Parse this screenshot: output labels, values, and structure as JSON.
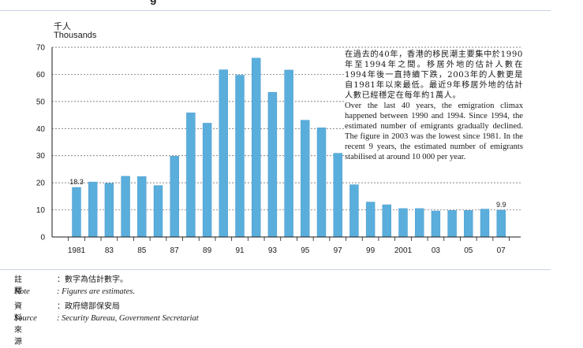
{
  "page": {
    "title_fragment": "g",
    "unit_zh": "千人",
    "unit_en": "Thousands"
  },
  "annotation": {
    "zh": "在過去的40年，香港的移民潮主要集中於1990年至1994年之間。移居外地的估計人數在1994年後一直持續下跌，2003年的人數更是自1981年以來最低。最近9年移居外地的估計人數已經穩定在每年約1萬人。",
    "en": "Over the last 40 years, the emigration climax happened between 1990 and 1994. Since 1994, the estimated number of emigrants gradually declined. The figure in 2003 was the lowest since 1981. In the recent 9 years, the estimated number of emigrants stabilised at around 10 000 per year."
  },
  "notes": {
    "note_label_zh": "註釋",
    "note_text_zh": "：數字為估計數字。",
    "note_label_en": "Note",
    "note_text_en": ": Figures are estimates.",
    "source_label_zh": "資料來源",
    "source_text_zh": "：政府總部保安局",
    "source_label_en": "Source",
    "source_text_en": ": Security Bureau, Government Secretariat"
  },
  "colors": {
    "bar": "#5aaedc",
    "bar_edge": "#3f93c6",
    "grid": "#5b5b5b",
    "axis": "#1a1a1a"
  },
  "chart_data": {
    "type": "bar",
    "title": "",
    "xlabel": "",
    "ylabel": "Thousands",
    "ylim": [
      0,
      70
    ],
    "yticks": [
      "0",
      "10",
      "20",
      "30",
      "40",
      "50",
      "60",
      "70"
    ],
    "categories": [
      "1981",
      "1982",
      "1983",
      "1984",
      "1985",
      "1986",
      "1987",
      "1988",
      "1989",
      "1990",
      "1991",
      "1992",
      "1993",
      "1994",
      "1995",
      "1996",
      "1997",
      "1998",
      "1999",
      "2000",
      "2001",
      "2002",
      "2003",
      "2004",
      "2005",
      "2006",
      "2007"
    ],
    "xtick_labels": [
      "1981",
      "",
      "83",
      "",
      "85",
      "",
      "87",
      "",
      "89",
      "",
      "91",
      "",
      "93",
      "",
      "95",
      "",
      "97",
      "",
      "99",
      "",
      "2001",
      "",
      "03",
      "",
      "05",
      "",
      "07"
    ],
    "values": [
      18.3,
      20.3,
      19.8,
      22.4,
      22.3,
      19.0,
      29.8,
      45.8,
      42.0,
      61.7,
      59.7,
      66.0,
      53.4,
      61.6,
      43.1,
      40.3,
      30.9,
      19.3,
      12.9,
      11.9,
      10.5,
      10.5,
      9.6,
      9.8,
      9.8,
      10.3,
      9.9
    ],
    "data_labels": [
      {
        "index": 0,
        "text": "18.3"
      },
      {
        "index": 26,
        "text": "9.9"
      }
    ]
  }
}
